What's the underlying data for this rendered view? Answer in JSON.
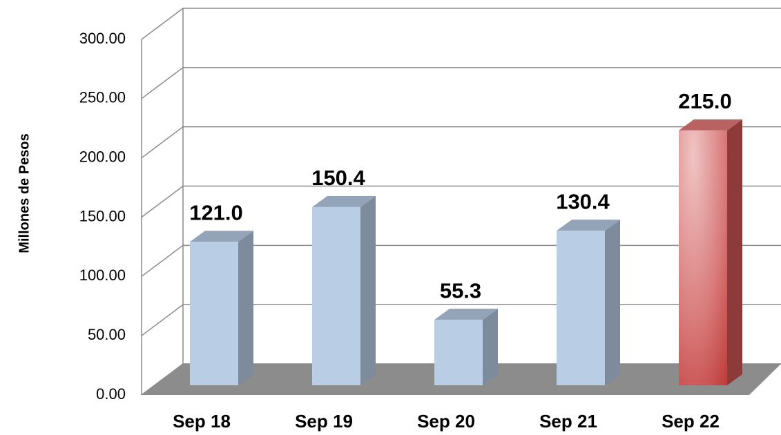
{
  "chart_data": {
    "type": "bar3d",
    "y_label": "Millones de Pesos",
    "categories": [
      "Sep 18",
      "Sep 19",
      "Sep 20",
      "Sep 21",
      "Sep 22"
    ],
    "values": [
      121.0,
      150.4,
      55.3,
      130.4,
      215.0
    ],
    "value_labels": [
      "121.0",
      "150.4",
      "55.3",
      "130.4",
      "215.0"
    ],
    "colors": [
      "#b9cde5",
      "#b9cde5",
      "#b9cde5",
      "#b9cde5",
      "#d9696a"
    ],
    "ylim": [
      0,
      300
    ],
    "yticks": [
      {
        "value": 0,
        "label": "0.00"
      },
      {
        "value": 50,
        "label": "50.00"
      },
      {
        "value": 100,
        "label": "100.00"
      },
      {
        "value": 150,
        "label": "150.00"
      },
      {
        "value": 200,
        "label": "200.00"
      },
      {
        "value": 250,
        "label": "250.00"
      },
      {
        "value": 300,
        "label": "300.00"
      }
    ],
    "grid": true
  }
}
